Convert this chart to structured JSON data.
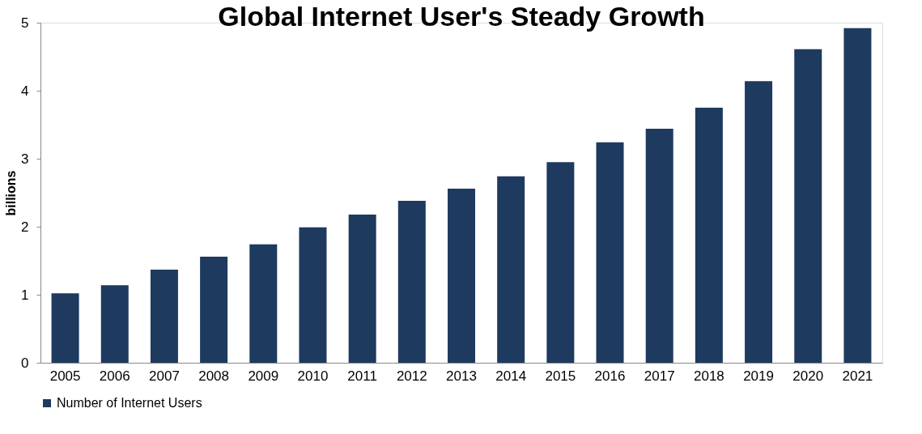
{
  "chart_data": {
    "type": "bar",
    "title": "Global Internet User's Steady Growth",
    "ylabel": "billions",
    "categories": [
      "2005",
      "2006",
      "2007",
      "2008",
      "2009",
      "2010",
      "2011",
      "2012",
      "2013",
      "2014",
      "2015",
      "2016",
      "2017",
      "2018",
      "2019",
      "2020",
      "2021"
    ],
    "series": [
      {
        "name": "Number of Internet Users",
        "color": "#1f3a5f",
        "values": [
          1.02,
          1.14,
          1.37,
          1.56,
          1.74,
          1.99,
          2.18,
          2.38,
          2.56,
          2.74,
          2.95,
          3.24,
          3.44,
          3.75,
          4.14,
          4.61,
          4.92
        ]
      }
    ],
    "ylim": [
      0,
      5
    ],
    "yticks": [
      0,
      1,
      2,
      3,
      4,
      5
    ],
    "grid": false,
    "legend": "bottom"
  }
}
